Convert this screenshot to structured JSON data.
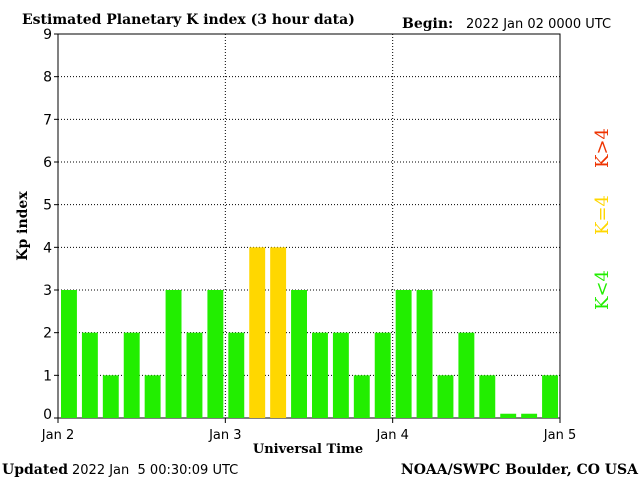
{
  "header": {
    "title": "Estimated Planetary K index (3 hour data)",
    "begin_label": "Begin:",
    "begin_value": "2022 Jan 02 0000 UTC"
  },
  "footer": {
    "updated_label": "Updated",
    "updated_value": "2022 Jan  5 00:30:09 UTC",
    "credit": "NOAA/SWPC Boulder, CO USA"
  },
  "legend": {
    "low": "K<4",
    "equal": "K=4",
    "high": "K>4"
  },
  "colors": {
    "low": "#22ee00",
    "equal": "#ffd700",
    "high": "#ee3300",
    "axis": "#000000",
    "grid": "#000000"
  },
  "chart_data": {
    "type": "bar",
    "title": "Estimated Planetary K index (3 hour data)",
    "xlabel": "Universal Time",
    "ylabel": "Kp index",
    "ylim": [
      0,
      9
    ],
    "yticks": [
      0,
      1,
      2,
      3,
      4,
      5,
      6,
      7,
      8,
      9
    ],
    "xticks": [
      "Jan 2",
      "Jan 3",
      "Jan 4",
      "Jan 5"
    ],
    "grid": true,
    "interval_hours": 3,
    "values": [
      3,
      2,
      1,
      2,
      1,
      3,
      2,
      3,
      2,
      4,
      4,
      3,
      2,
      2,
      1,
      2,
      3,
      3,
      1,
      2,
      1,
      0.1,
      0.1,
      1
    ]
  }
}
